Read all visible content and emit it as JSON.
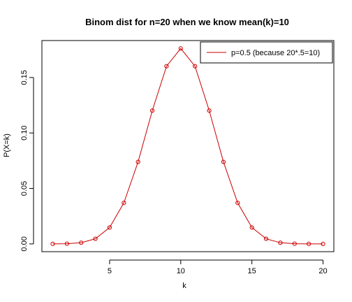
{
  "chart_data": {
    "type": "line",
    "title": "Binom dist for n=20 when we know mean(k)=10",
    "xlabel": "k",
    "ylabel": "P(X=k)",
    "xlim": [
      0.24,
      20.76
    ],
    "ylim": [
      -0.007,
      0.1833
    ],
    "x_ticks": [
      5,
      10,
      15,
      20
    ],
    "y_ticks": [
      0.0,
      0.05,
      0.1,
      0.15
    ],
    "y_tick_labels": [
      "0.00",
      "0.05",
      "0.10",
      "0.15"
    ],
    "grid": false,
    "legend_position": "top-right",
    "colors": {
      "series": "#cc0000",
      "axis": "#000000"
    },
    "series": [
      {
        "name": "p=0.5 (because 20*.5=10)",
        "marker": "open-circle",
        "x": [
          1,
          2,
          3,
          4,
          5,
          6,
          7,
          8,
          9,
          10,
          11,
          12,
          13,
          14,
          15,
          16,
          17,
          18,
          19,
          20
        ],
        "values": [
          1.91e-05,
          0.0001812,
          0.0010872,
          0.0046206,
          0.0147858,
          0.0369644,
          0.0739288,
          0.1201344,
          0.1601791,
          0.1761971,
          0.1601791,
          0.1201344,
          0.0739288,
          0.0369644,
          0.0147858,
          0.0046206,
          0.0010872,
          0.0001812,
          1.91e-05,
          1e-06
        ]
      }
    ]
  }
}
